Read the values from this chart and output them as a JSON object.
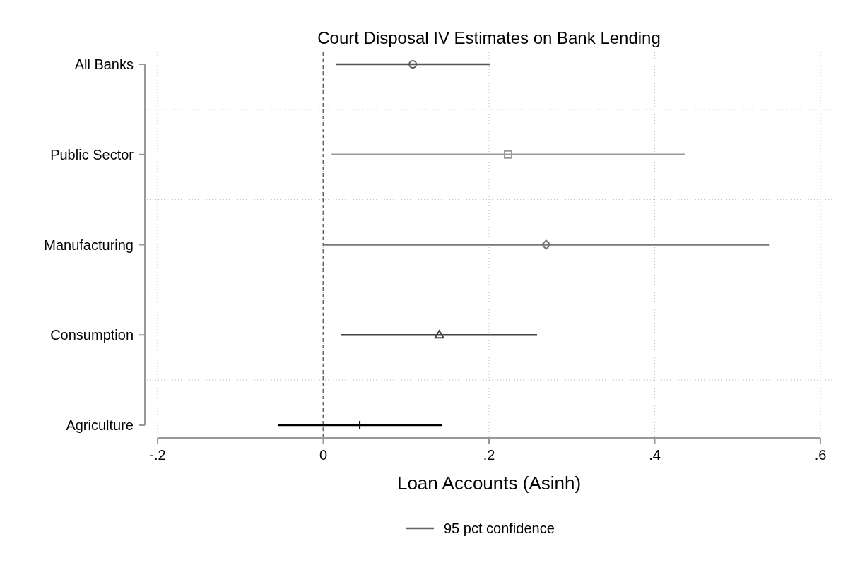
{
  "chart_data": {
    "type": "scatter",
    "orientation": "horizontal",
    "title": "Court Disposal IV Estimates on Bank Lending",
    "xlabel": "Loan Accounts (Asinh)",
    "legend_title": "95 pct confidence",
    "grid": true,
    "categories": [
      "All Banks",
      "Public Sector",
      "Manufacturing",
      "Consumption",
      "Agriculture"
    ],
    "xlim": [
      -0.2,
      0.6
    ],
    "xticks": [
      {
        "value": -0.2,
        "label": "-.2"
      },
      0,
      {
        "value": 0.2,
        "label": ".2"
      },
      {
        "value": 0.4,
        "label": ".4"
      },
      {
        "value": 0.6,
        "label": ".6"
      }
    ],
    "ref_lines": [
      {
        "axis": "x",
        "value": 0,
        "line_style": "dashed",
        "color": "#666666"
      }
    ],
    "series": [
      {
        "color": "#555555",
        "marker": "circle",
        "values": [
          0.108,
          null,
          null,
          null,
          null
        ],
        "errors": [
          [
            0.015,
            0.201
          ],
          null,
          null,
          null,
          null
        ]
      },
      {
        "color": "#999999",
        "marker": "square",
        "values": [
          null,
          0.223,
          null,
          null,
          null
        ],
        "errors": [
          null,
          [
            0.01,
            0.437
          ],
          null,
          null,
          null
        ]
      },
      {
        "color": "#777777",
        "marker": "diamond",
        "values": [
          null,
          null,
          0.269,
          null,
          null
        ],
        "errors": [
          null,
          null,
          [
            0.0,
            0.538
          ],
          null,
          null
        ]
      },
      {
        "color": "#444444",
        "marker": "triangle",
        "values": [
          null,
          null,
          null,
          0.14,
          null
        ],
        "errors": [
          null,
          null,
          null,
          [
            0.021,
            0.258
          ],
          null
        ]
      },
      {
        "color": "#000000",
        "marker": "cross",
        "values": [
          null,
          null,
          null,
          null,
          0.044
        ],
        "errors": [
          null,
          null,
          null,
          null,
          [
            -0.055,
            0.143
          ]
        ]
      }
    ]
  }
}
